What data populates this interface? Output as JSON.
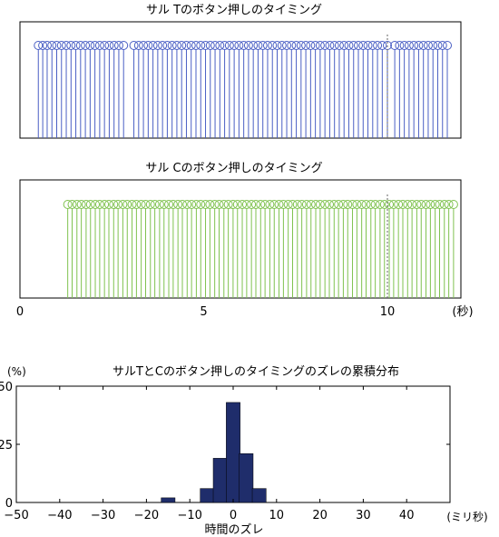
{
  "chart_data": [
    {
      "type": "stem",
      "title": "サル Tのボタン押しのタイミング",
      "color": "#4a5fc4",
      "xlim": [
        0,
        12
      ],
      "xlabel": "",
      "ylabel": "",
      "x": [
        0.5,
        0.62,
        0.74,
        0.87,
        1.0,
        1.13,
        1.26,
        1.39,
        1.52,
        1.65,
        1.78,
        1.91,
        2.04,
        2.17,
        2.3,
        2.43,
        2.56,
        2.69,
        2.82,
        3.1,
        3.23,
        3.36,
        3.49,
        3.62,
        3.75,
        3.88,
        4.01,
        4.14,
        4.27,
        4.4,
        4.53,
        4.66,
        4.79,
        4.92,
        5.05,
        5.18,
        5.31,
        5.44,
        5.57,
        5.7,
        5.83,
        5.96,
        6.09,
        6.22,
        6.35,
        6.48,
        6.61,
        6.74,
        6.87,
        7.0,
        7.13,
        7.26,
        7.39,
        7.52,
        7.65,
        7.78,
        7.91,
        8.04,
        8.17,
        8.3,
        8.43,
        8.56,
        8.69,
        8.82,
        8.95,
        9.08,
        9.21,
        9.34,
        9.47,
        9.6,
        9.73,
        9.86,
        10.0,
        10.2,
        10.33,
        10.46,
        10.59,
        10.72,
        10.85,
        10.98,
        11.11,
        11.24,
        11.37,
        11.5,
        11.63
      ],
      "marker_line_x": 10
    },
    {
      "type": "stem",
      "title": "サル Cのボタン押しのタイミング",
      "color": "#7fc24f",
      "xlim": [
        0,
        12
      ],
      "xticks": [
        "0",
        "5",
        "10"
      ],
      "xtick_values": [
        0,
        5,
        10
      ],
      "xunit": "(秒)",
      "x": [
        1.3,
        1.42,
        1.55,
        1.67,
        1.8,
        1.92,
        2.05,
        2.17,
        2.3,
        2.42,
        2.55,
        2.67,
        2.8,
        2.92,
        3.05,
        3.17,
        3.3,
        3.42,
        3.55,
        3.67,
        3.8,
        3.92,
        4.05,
        4.17,
        4.3,
        4.42,
        4.55,
        4.67,
        4.8,
        4.92,
        5.05,
        5.17,
        5.3,
        5.42,
        5.55,
        5.67,
        5.8,
        5.92,
        6.05,
        6.17,
        6.3,
        6.42,
        6.55,
        6.67,
        6.8,
        6.92,
        7.05,
        7.17,
        7.3,
        7.42,
        7.55,
        7.67,
        7.8,
        7.92,
        8.05,
        8.17,
        8.3,
        8.42,
        8.55,
        8.67,
        8.8,
        8.92,
        9.05,
        9.17,
        9.3,
        9.42,
        9.55,
        9.67,
        9.8,
        9.92,
        10.05,
        10.17,
        10.3,
        10.42,
        10.55,
        10.67,
        10.8,
        10.92,
        11.05,
        11.17,
        11.3,
        11.42,
        11.55,
        11.67,
        11.8
      ],
      "marker_line_x": 10
    },
    {
      "type": "bar",
      "title": "サルTとCのボタン押しのタイミングのズレの累積分布",
      "color": "#1f2d6b",
      "ylabel": "(%)",
      "xlabel": "時間のズレ",
      "xunit": "(ミリ秒)",
      "xlim": [
        -50,
        50
      ],
      "ylim": [
        0,
        50
      ],
      "xticks": [
        "−50",
        "−40",
        "−30",
        "−20",
        "−10",
        "0",
        "10",
        "20",
        "30",
        "40"
      ],
      "xtick_values": [
        -50,
        -40,
        -30,
        -20,
        -10,
        0,
        10,
        20,
        30,
        40
      ],
      "yticks": [
        "0",
        "25",
        "50"
      ],
      "ytick_values": [
        0,
        25,
        50
      ],
      "bin_width": 3.2,
      "bars": [
        {
          "x": -15,
          "value": 2
        },
        {
          "x": -6,
          "value": 6
        },
        {
          "x": -3,
          "value": 19
        },
        {
          "x": 0,
          "value": 43
        },
        {
          "x": 3,
          "value": 21
        },
        {
          "x": 6,
          "value": 6
        }
      ]
    }
  ]
}
